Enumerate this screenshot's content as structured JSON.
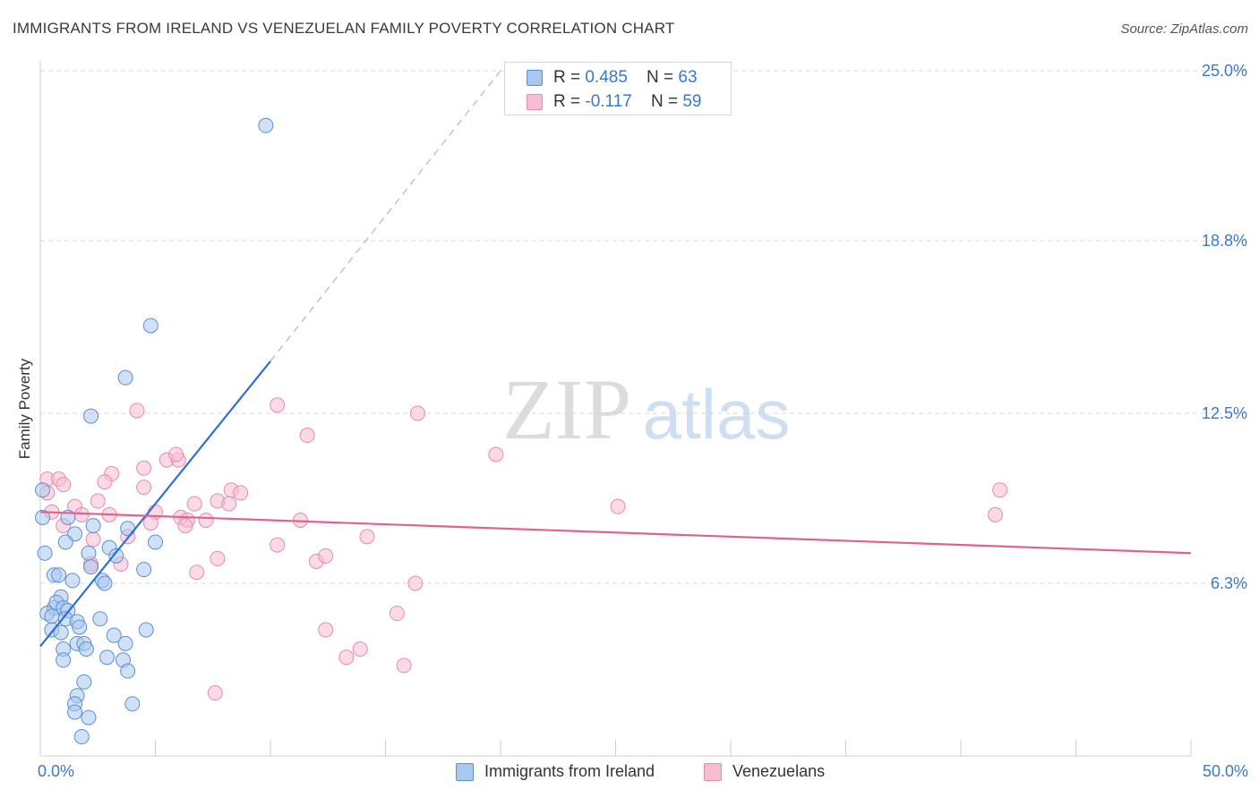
{
  "header": {
    "title": "IMMIGRANTS FROM IRELAND VS VENEZUELAN FAMILY POVERTY CORRELATION CHART",
    "source": "Source: ZipAtlas.com"
  },
  "watermark": {
    "zip": "ZIP",
    "atlas": "atlas"
  },
  "legend_top": [
    {
      "r_label": "R = ",
      "r_value": "0.485",
      "n_label": "N = ",
      "n_value": "63"
    },
    {
      "r_label": "R = ",
      "r_value": "-0.117",
      "n_label": "N = ",
      "n_value": "59"
    }
  ],
  "legend_bottom": [
    "Immigrants from Ireland",
    "Venezuelans"
  ],
  "colors": {
    "blue_fill": "#a9c8ee",
    "blue_stroke": "#5b8fd6",
    "blue_line": "#2f6fcf",
    "pink_fill": "#f6bcd0",
    "pink_stroke": "#e88aa9",
    "pink_line": "#e0628d",
    "tick_label": "#3b78c8",
    "grid": "#d9d9d9"
  },
  "chart_data": {
    "type": "scatter",
    "title": "IMMIGRANTS FROM IRELAND VS VENEZUELAN FAMILY POVERTY CORRELATION CHART",
    "xlabel": "",
    "ylabel": "Family Poverty",
    "xlim": [
      0,
      50
    ],
    "ylim": [
      0,
      26
    ],
    "x_tick_labels": [
      "0.0%",
      "50.0%"
    ],
    "y_ticks": [
      6.3,
      12.5,
      18.8,
      25.0
    ],
    "y_tick_labels": [
      "6.3%",
      "12.5%",
      "18.8%",
      "25.0%"
    ],
    "grid": "horizontal dashed",
    "legend_position": "top-center",
    "series": [
      {
        "name": "Immigrants from Ireland",
        "color": "#a9c8ee",
        "points": [
          [
            9.8,
            23.0
          ],
          [
            4.8,
            15.7
          ],
          [
            3.7,
            13.8
          ],
          [
            2.2,
            12.4
          ],
          [
            0.1,
            9.7
          ],
          [
            0.1,
            8.7
          ],
          [
            1.2,
            8.7
          ],
          [
            1.5,
            8.1
          ],
          [
            2.3,
            8.4
          ],
          [
            3.8,
            8.3
          ],
          [
            1.1,
            7.8
          ],
          [
            3.0,
            7.6
          ],
          [
            5.0,
            7.8
          ],
          [
            0.2,
            7.4
          ],
          [
            2.1,
            7.4
          ],
          [
            3.3,
            7.3
          ],
          [
            2.2,
            6.9
          ],
          [
            4.5,
            6.8
          ],
          [
            0.6,
            6.6
          ],
          [
            0.8,
            6.6
          ],
          [
            1.4,
            6.4
          ],
          [
            2.7,
            6.4
          ],
          [
            2.8,
            6.3
          ],
          [
            0.9,
            5.8
          ],
          [
            0.6,
            5.4
          ],
          [
            0.7,
            5.6
          ],
          [
            1.0,
            5.4
          ],
          [
            0.3,
            5.2
          ],
          [
            0.5,
            5.1
          ],
          [
            1.2,
            5.3
          ],
          [
            1.1,
            5.0
          ],
          [
            1.6,
            4.9
          ],
          [
            2.6,
            5.0
          ],
          [
            1.7,
            4.7
          ],
          [
            0.5,
            4.6
          ],
          [
            0.9,
            4.5
          ],
          [
            3.2,
            4.4
          ],
          [
            4.6,
            4.6
          ],
          [
            1.6,
            4.1
          ],
          [
            1.9,
            4.1
          ],
          [
            3.7,
            4.1
          ],
          [
            2.0,
            3.9
          ],
          [
            1.0,
            3.9
          ],
          [
            1.0,
            3.5
          ],
          [
            2.9,
            3.6
          ],
          [
            3.6,
            3.5
          ],
          [
            3.8,
            3.1
          ],
          [
            1.9,
            2.7
          ],
          [
            1.6,
            2.2
          ],
          [
            1.5,
            1.9
          ],
          [
            4.0,
            1.9
          ],
          [
            1.5,
            1.6
          ],
          [
            2.1,
            1.4
          ],
          [
            1.8,
            0.7
          ]
        ]
      },
      {
        "name": "Venezuelans",
        "color": "#f6bcd0",
        "points": [
          [
            0.3,
            10.1
          ],
          [
            0.8,
            10.1
          ],
          [
            1.0,
            9.9
          ],
          [
            0.3,
            9.6
          ],
          [
            3.1,
            10.3
          ],
          [
            2.8,
            10.0
          ],
          [
            4.5,
            10.5
          ],
          [
            5.5,
            10.8
          ],
          [
            6.0,
            10.8
          ],
          [
            5.9,
            11.0
          ],
          [
            4.2,
            12.6
          ],
          [
            10.3,
            12.8
          ],
          [
            11.6,
            11.7
          ],
          [
            16.4,
            12.5
          ],
          [
            19.8,
            11.0
          ],
          [
            4.5,
            9.8
          ],
          [
            8.3,
            9.7
          ],
          [
            8.7,
            9.6
          ],
          [
            1.5,
            9.1
          ],
          [
            2.5,
            9.3
          ],
          [
            6.7,
            9.2
          ],
          [
            7.7,
            9.3
          ],
          [
            8.2,
            9.2
          ],
          [
            25.1,
            9.1
          ],
          [
            41.5,
            8.8
          ],
          [
            41.7,
            9.7
          ],
          [
            0.5,
            8.9
          ],
          [
            1.8,
            8.8
          ],
          [
            3.0,
            8.8
          ],
          [
            5.0,
            8.9
          ],
          [
            6.1,
            8.7
          ],
          [
            6.4,
            8.6
          ],
          [
            7.2,
            8.6
          ],
          [
            11.3,
            8.6
          ],
          [
            6.3,
            8.4
          ],
          [
            4.8,
            8.5
          ],
          [
            1.0,
            8.4
          ],
          [
            3.8,
            8.0
          ],
          [
            2.3,
            7.9
          ],
          [
            14.2,
            8.0
          ],
          [
            10.3,
            7.7
          ],
          [
            12.0,
            7.1
          ],
          [
            12.4,
            7.3
          ],
          [
            7.7,
            7.2
          ],
          [
            3.5,
            7.0
          ],
          [
            2.2,
            7.0
          ],
          [
            6.8,
            6.7
          ],
          [
            16.3,
            6.3
          ],
          [
            15.5,
            5.2
          ],
          [
            12.4,
            4.6
          ],
          [
            13.9,
            3.9
          ],
          [
            13.3,
            3.6
          ],
          [
            15.8,
            3.3
          ],
          [
            7.6,
            2.3
          ]
        ]
      }
    ],
    "trend_lines": [
      {
        "series": "Immigrants from Ireland",
        "x": [
          0,
          10
        ],
        "y": [
          4.0,
          14.4
        ],
        "dashed_extension_to": [
          20,
          25.0
        ]
      },
      {
        "series": "Venezuelans",
        "x": [
          0,
          50
        ],
        "y": [
          8.9,
          7.4
        ]
      }
    ]
  }
}
